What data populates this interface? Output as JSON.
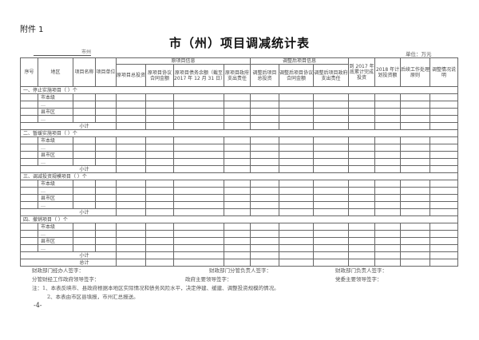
{
  "attachment": "附件 1",
  "title": "市（州）项目调减统计表",
  "city_suffix": "市州",
  "unit": "单位：万元",
  "header": {
    "seq": "序号",
    "region": "地区",
    "project_name": "项目名称",
    "project_unit": "项目单位",
    "original_group": "原项目信息",
    "original_cols": [
      "原项目总投资",
      "原项目协议合同金额",
      "原项目债务余额（截至 2017 年 12 月 31 日）",
      "原项目政府支出责任"
    ],
    "adjusted_group": "调整后项目信息",
    "adjusted_cols": [
      "调整后项目总投资",
      "调整后项目协议合同金额",
      "调整后项目政府支出责任"
    ],
    "completed_2017": "到 2017 年底累计完成投资",
    "plan_2018": "2018 年计划投资额",
    "follow_up": "后续工作处理原则",
    "explanation": "调整情况说明"
  },
  "sections": [
    {
      "label": "一、停止实施项目（ ）个"
    },
    {
      "label": "二、暂缓实施项目（ ）个"
    },
    {
      "label": "三、调减投资规模项目（ ）个"
    },
    {
      "label": "四、撤销项目（ ）个"
    }
  ],
  "row_labels": [
    "市本级",
    "…",
    "县市区",
    "…"
  ],
  "subtotal": "小计",
  "total": "总计",
  "signatures": [
    [
      "财政部门经办人签字：",
      "财政部门分管负责人签字：",
      "财政部门负责人签字："
    ],
    [
      "分管财经工作政府领导签字：",
      "政府主要领导签字：",
      "党委主要领导签字："
    ]
  ],
  "notes": [
    "注：1、本表反映市、县政府根据本地区实际情况和债务风险水平，决定停建、缓建、调整投资规模的情况。",
    "2、本表由市区县填报，市州汇总报送。"
  ],
  "page_number": "-4-"
}
